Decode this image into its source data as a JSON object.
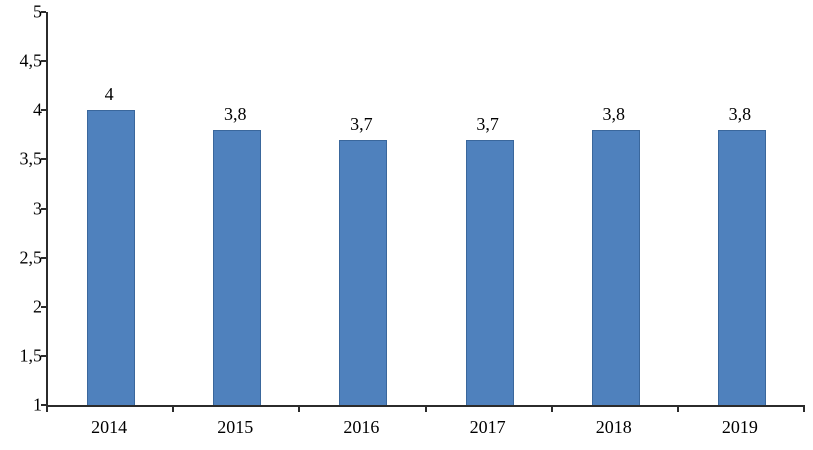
{
  "chart_data": {
    "type": "bar",
    "title": "",
    "xlabel": "",
    "ylabel": "",
    "categories": [
      "2014",
      "2015",
      "2016",
      "2017",
      "2018",
      "2019"
    ],
    "values": [
      4,
      3.8,
      3.7,
      3.7,
      3.8,
      3.8
    ],
    "data_labels": [
      "4",
      "3,8",
      "3,7",
      "3,7",
      "3,8",
      "3,8"
    ],
    "ylim": [
      1,
      5
    ],
    "y_ticks": [
      1,
      1.5,
      2,
      2.5,
      3,
      3.5,
      4,
      4.5,
      5
    ],
    "y_tick_labels": [
      "1",
      "1,5",
      "2",
      "2,5",
      "3",
      "3,5",
      "4",
      "4,5",
      "5"
    ],
    "grid": false,
    "legend_position": "none",
    "colors": {
      "bar_fill": "#4f81bd",
      "bar_border": "#3a679c",
      "axis": "#2b2b2b",
      "text": "#000000",
      "background": "#ffffff"
    }
  }
}
